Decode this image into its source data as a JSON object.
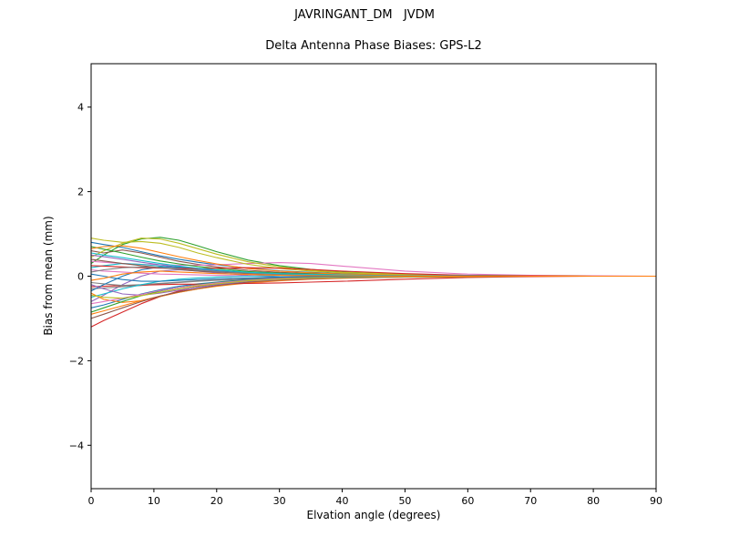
{
  "figure": {
    "suptitle": "JAVRINGANT_DM   JVDM",
    "axes_title": "Delta Antenna Phase Biases: GPS-L2"
  },
  "chart_data": {
    "type": "line",
    "suptitle": "JAVRINGANT_DM   JVDM",
    "title": "Delta Antenna Phase Biases: GPS-L2",
    "xlabel": "Elvation angle (degrees)",
    "ylabel": "Bias from mean (mm)",
    "xlim": [
      0,
      90
    ],
    "ylim": [
      -5,
      5
    ],
    "xticks": [
      0,
      10,
      20,
      30,
      40,
      50,
      60,
      70,
      80,
      90
    ],
    "xtick_labels": [
      "0",
      "10",
      "20",
      "30",
      "40",
      "50",
      "60",
      "70",
      "80",
      "90"
    ],
    "yticks": [
      -4,
      -2,
      0,
      2,
      4
    ],
    "ytick_labels": [
      "−4",
      "−2",
      "0",
      "2",
      "4"
    ],
    "grid": false,
    "legend": "none",
    "palette": [
      "#1f77b4",
      "#ff7f0e",
      "#2ca02c",
      "#d62728",
      "#9467bd",
      "#8c564b",
      "#e377c2",
      "#7f7f7f",
      "#bcbd22",
      "#17becf"
    ],
    "x": [
      0,
      2,
      5,
      8,
      11,
      14,
      17,
      20,
      25,
      30,
      35,
      40,
      50,
      60,
      70,
      80,
      90
    ],
    "series": [
      {
        "values": [
          0.8,
          0.75,
          0.68,
          0.58,
          0.48,
          0.4,
          0.33,
          0.27,
          0.19,
          0.13,
          0.09,
          0.06,
          0.03,
          0.01,
          0.01,
          0.0,
          0.0
        ]
      },
      {
        "values": [
          -0.9,
          -0.82,
          -0.7,
          -0.58,
          -0.47,
          -0.38,
          -0.3,
          -0.24,
          -0.16,
          -0.11,
          -0.07,
          -0.05,
          -0.02,
          -0.01,
          0.0,
          0.0,
          0.0
        ]
      },
      {
        "values": [
          0.3,
          0.5,
          0.75,
          0.88,
          0.92,
          0.85,
          0.72,
          0.58,
          0.38,
          0.25,
          0.16,
          0.1,
          0.04,
          0.02,
          0.01,
          0.0,
          0.0
        ]
      },
      {
        "values": [
          -1.2,
          -1.05,
          -0.85,
          -0.65,
          -0.48,
          -0.35,
          -0.25,
          -0.18,
          -0.1,
          -0.06,
          -0.04,
          -0.03,
          -0.01,
          0.0,
          0.0,
          0.0,
          0.0
        ]
      },
      {
        "values": [
          -0.6,
          -0.45,
          -0.2,
          0.0,
          0.12,
          0.15,
          0.12,
          0.08,
          0.02,
          -0.02,
          -0.04,
          -0.03,
          -0.01,
          0.0,
          0.0,
          0.0,
          0.0
        ]
      },
      {
        "values": [
          0.6,
          0.55,
          0.62,
          0.55,
          0.45,
          0.35,
          0.28,
          0.22,
          0.14,
          0.09,
          0.06,
          0.04,
          0.02,
          0.01,
          0.0,
          0.0,
          0.0
        ]
      },
      {
        "values": [
          0.35,
          0.33,
          0.3,
          0.28,
          0.27,
          0.26,
          0.26,
          0.27,
          0.3,
          0.32,
          0.3,
          0.24,
          0.12,
          0.05,
          0.02,
          0.01,
          0.0
        ]
      },
      {
        "values": [
          -0.3,
          -0.28,
          -0.25,
          -0.22,
          -0.18,
          -0.15,
          -0.12,
          -0.1,
          -0.07,
          -0.05,
          -0.03,
          -0.02,
          -0.01,
          0.0,
          0.0,
          0.0,
          0.0
        ]
      },
      {
        "values": [
          0.45,
          0.6,
          0.78,
          0.9,
          0.88,
          0.78,
          0.65,
          0.52,
          0.34,
          0.22,
          0.14,
          0.09,
          0.04,
          0.02,
          0.01,
          0.0,
          0.0
        ]
      },
      {
        "values": [
          0.2,
          0.25,
          0.3,
          0.28,
          0.24,
          0.2,
          0.16,
          0.13,
          0.08,
          0.05,
          0.03,
          0.02,
          0.01,
          0.0,
          0.0,
          0.0,
          0.0
        ]
      },
      {
        "values": [
          -0.75,
          -0.68,
          -0.55,
          -0.42,
          -0.32,
          -0.24,
          -0.18,
          -0.14,
          -0.08,
          -0.05,
          -0.03,
          -0.02,
          -0.01,
          0.0,
          0.0,
          0.0,
          0.0
        ]
      },
      {
        "values": [
          -0.4,
          -0.55,
          -0.62,
          -0.58,
          -0.48,
          -0.38,
          -0.3,
          -0.23,
          -0.14,
          -0.09,
          -0.06,
          -0.04,
          -0.02,
          -0.01,
          0.0,
          0.0,
          0.0
        ]
      },
      {
        "values": [
          0.7,
          0.64,
          0.55,
          0.45,
          0.36,
          0.29,
          0.23,
          0.18,
          0.11,
          0.07,
          0.05,
          0.03,
          0.01,
          0.01,
          0.0,
          0.0,
          0.0
        ]
      },
      {
        "values": [
          -0.25,
          -0.24,
          -0.22,
          -0.21,
          -0.2,
          -0.19,
          -0.19,
          -0.18,
          -0.17,
          -0.16,
          -0.14,
          -0.12,
          -0.07,
          -0.03,
          -0.01,
          0.0,
          0.0
        ]
      },
      {
        "values": [
          0.5,
          0.46,
          0.4,
          0.33,
          0.27,
          0.21,
          0.17,
          0.13,
          0.08,
          0.05,
          0.03,
          0.02,
          0.01,
          0.0,
          0.0,
          0.0,
          0.0
        ]
      },
      {
        "values": [
          -1.0,
          -0.9,
          -0.75,
          -0.6,
          -0.47,
          -0.37,
          -0.29,
          -0.22,
          -0.14,
          -0.09,
          -0.06,
          -0.04,
          -0.02,
          -0.01,
          0.0,
          0.0,
          0.0
        ]
      },
      {
        "values": [
          0.15,
          0.12,
          0.1,
          0.07,
          0.05,
          0.04,
          0.03,
          0.02,
          0.01,
          0.01,
          0.0,
          0.0,
          0.0,
          0.0,
          0.0,
          0.0,
          0.0
        ]
      },
      {
        "values": [
          -0.15,
          -0.18,
          -0.22,
          -0.2,
          -0.17,
          -0.14,
          -0.11,
          -0.09,
          -0.06,
          -0.04,
          -0.02,
          -0.02,
          -0.01,
          0.0,
          0.0,
          0.0,
          0.0
        ]
      },
      {
        "values": [
          0.9,
          0.85,
          0.8,
          0.82,
          0.78,
          0.68,
          0.55,
          0.44,
          0.28,
          0.18,
          0.12,
          0.08,
          0.03,
          0.01,
          0.01,
          0.0,
          0.0
        ]
      },
      {
        "values": [
          -0.5,
          -0.42,
          -0.3,
          -0.2,
          -0.12,
          -0.07,
          -0.04,
          -0.02,
          0.0,
          0.01,
          0.01,
          0.0,
          0.0,
          0.0,
          0.0,
          0.0,
          0.0
        ]
      },
      {
        "values": [
          -0.35,
          -0.2,
          0.0,
          0.15,
          0.22,
          0.22,
          0.18,
          0.14,
          0.08,
          0.05,
          0.03,
          0.02,
          0.01,
          0.0,
          0.0,
          0.0,
          0.0
        ]
      },
      {
        "values": [
          0.65,
          0.7,
          0.72,
          0.66,
          0.56,
          0.46,
          0.37,
          0.29,
          0.18,
          0.12,
          0.08,
          0.05,
          0.02,
          0.01,
          0.0,
          0.0,
          0.0
        ]
      },
      {
        "values": [
          -0.85,
          -0.75,
          -0.6,
          -0.46,
          -0.35,
          -0.27,
          -0.2,
          -0.15,
          -0.09,
          -0.06,
          -0.04,
          -0.02,
          -0.01,
          0.0,
          0.0,
          0.0,
          0.0
        ]
      },
      {
        "values": [
          0.25,
          0.24,
          0.22,
          0.2,
          0.19,
          0.18,
          0.18,
          0.19,
          0.2,
          0.19,
          0.16,
          0.12,
          0.06,
          0.02,
          0.01,
          0.0,
          0.0
        ]
      },
      {
        "values": [
          -0.2,
          -0.3,
          -0.42,
          -0.45,
          -0.4,
          -0.33,
          -0.26,
          -0.2,
          -0.12,
          -0.08,
          -0.05,
          -0.03,
          -0.01,
          -0.01,
          0.0,
          0.0,
          0.0
        ]
      },
      {
        "values": [
          0.4,
          0.36,
          0.3,
          0.25,
          0.2,
          0.16,
          0.12,
          0.1,
          0.06,
          0.04,
          0.02,
          0.02,
          0.01,
          0.0,
          0.0,
          0.0,
          0.0
        ]
      },
      {
        "values": [
          -0.65,
          -0.6,
          -0.52,
          -0.43,
          -0.34,
          -0.27,
          -0.21,
          -0.16,
          -0.1,
          -0.06,
          -0.04,
          -0.03,
          -0.01,
          0.0,
          0.0,
          0.0,
          0.0
        ]
      },
      {
        "values": [
          0.1,
          0.15,
          0.2,
          0.22,
          0.2,
          0.17,
          0.14,
          0.11,
          0.07,
          0.04,
          0.03,
          0.02,
          0.01,
          0.0,
          0.0,
          0.0,
          0.0
        ]
      },
      {
        "values": [
          -0.45,
          -0.5,
          -0.52,
          -0.46,
          -0.38,
          -0.3,
          -0.23,
          -0.18,
          -0.11,
          -0.07,
          -0.04,
          -0.03,
          -0.01,
          -0.01,
          0.0,
          0.0,
          0.0
        ]
      },
      {
        "values": [
          0.55,
          0.5,
          0.44,
          0.37,
          0.3,
          0.24,
          0.19,
          0.15,
          0.09,
          0.06,
          0.04,
          0.03,
          0.01,
          0.01,
          0.0,
          0.0,
          0.0
        ]
      },
      {
        "values": [
          0.05,
          0.0,
          -0.08,
          -0.12,
          -0.12,
          -0.1,
          -0.08,
          -0.06,
          -0.04,
          -0.02,
          -0.01,
          -0.01,
          0.0,
          0.0,
          0.0,
          0.0,
          0.0
        ]
      },
      {
        "values": [
          -0.1,
          -0.05,
          0.05,
          0.1,
          0.12,
          0.1,
          0.08,
          0.06,
          0.04,
          0.02,
          0.01,
          0.01,
          0.0,
          0.0,
          0.0,
          0.0,
          0.0
        ]
      }
    ]
  }
}
